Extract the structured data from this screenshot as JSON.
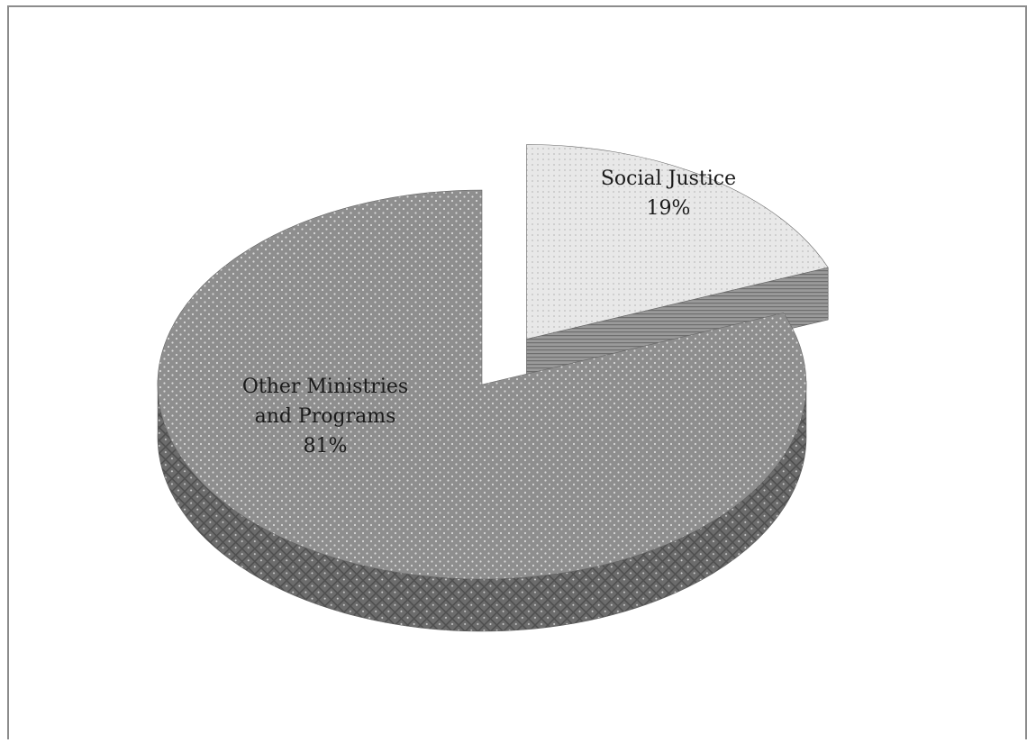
{
  "chart_data": {
    "type": "pie",
    "style": "3d-exploded",
    "title": "",
    "slices": [
      {
        "name": "Social Justice",
        "value": 19,
        "label_lines": [
          "Social Justice",
          "19%"
        ],
        "exploded": true
      },
      {
        "name": "Other Ministries and Programs",
        "value": 81,
        "label_lines": [
          "Other Ministries",
          "and Programs",
          "81%"
        ],
        "exploded": false
      }
    ],
    "legend": "none",
    "colors": {
      "social_justice_top": "#e6e6e6",
      "social_justice_side": "#8a8a8a",
      "other_top": "#8f8f8f",
      "other_side": "#6f6f6f",
      "frame": "#8c8c8c"
    }
  }
}
